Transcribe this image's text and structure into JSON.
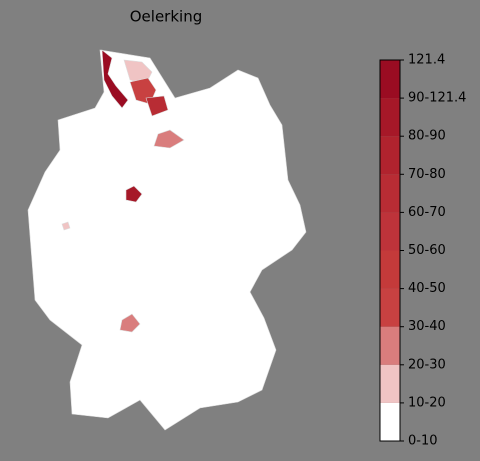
{
  "map": {
    "title": "Oelerking",
    "legend": {
      "labels": [
        "0-10",
        "10-20",
        "20-30",
        "30-40",
        "40-50",
        "50-60",
        "60-70",
        "70-80",
        "80-90",
        "90-121.4",
        "121.4"
      ],
      "colors": [
        "#ffffff",
        "#f0c4c4",
        "#d97d7d",
        "#c84141",
        "#c43a3a",
        "#be333a",
        "#b82c34",
        "#b0232e",
        "#a61828",
        "#9a0c22"
      ]
    }
  }
}
